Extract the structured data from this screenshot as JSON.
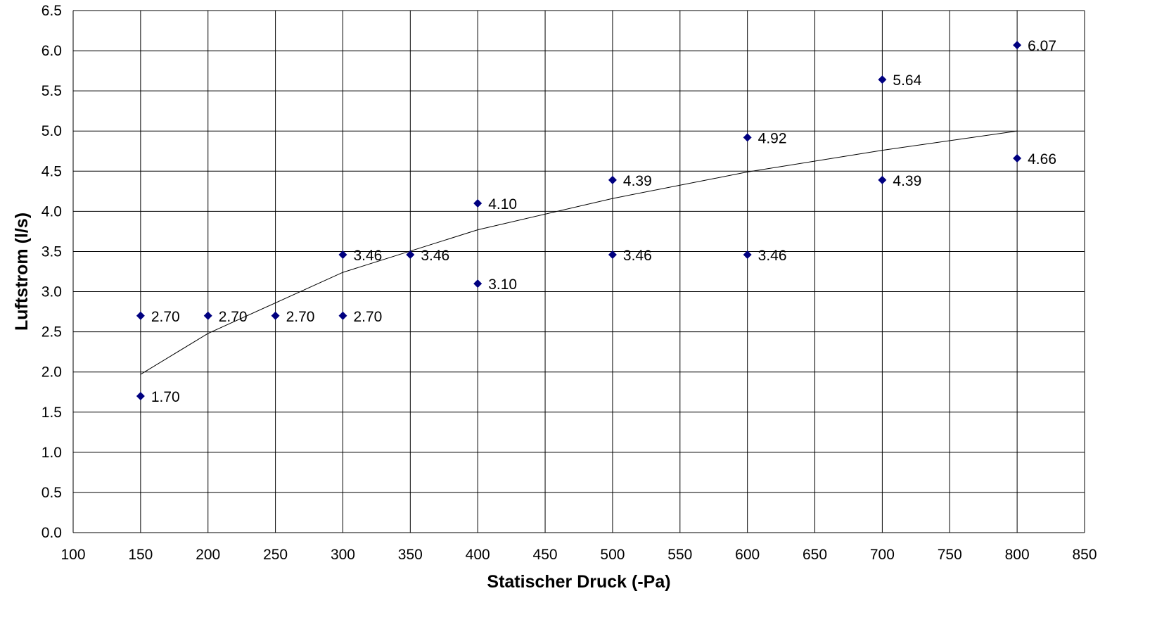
{
  "chart_data": {
    "type": "scatter",
    "title": "",
    "xlabel": "Statischer Druck (-Pa)",
    "ylabel": "Luftstrom (l/s)",
    "xlim": [
      100,
      850
    ],
    "ylim": [
      0,
      6.5
    ],
    "x_ticks": [
      "100",
      "150",
      "200",
      "250",
      "300",
      "350",
      "400",
      "450",
      "500",
      "550",
      "600",
      "650",
      "700",
      "750",
      "800",
      "850"
    ],
    "y_ticks": [
      "0.0",
      "0.5",
      "1.0",
      "1.5",
      "2.0",
      "2.5",
      "3.0",
      "3.5",
      "4.0",
      "4.5",
      "5.0",
      "5.5",
      "6.0",
      "6.5"
    ],
    "grid": true,
    "legend": "none",
    "marker": "diamond",
    "marker_color": "#000080",
    "series": [
      {
        "points": [
          {
            "x": 150,
            "y": 2.7,
            "label": "2.70"
          },
          {
            "x": 150,
            "y": 1.7,
            "label": "1.70"
          },
          {
            "x": 200,
            "y": 2.7,
            "label": "2.70"
          },
          {
            "x": 250,
            "y": 2.7,
            "label": "2.70"
          },
          {
            "x": 300,
            "y": 3.46,
            "label": "3.46"
          },
          {
            "x": 300,
            "y": 2.7,
            "label": "2.70"
          },
          {
            "x": 350,
            "y": 3.46,
            "label": "3.46"
          },
          {
            "x": 400,
            "y": 4.1,
            "label": "4.10"
          },
          {
            "x": 400,
            "y": 3.1,
            "label": "3.10"
          },
          {
            "x": 500,
            "y": 4.39,
            "label": "4.39"
          },
          {
            "x": 500,
            "y": 3.46,
            "label": "3.46"
          },
          {
            "x": 600,
            "y": 4.92,
            "label": "4.92"
          },
          {
            "x": 600,
            "y": 3.46,
            "label": "3.46"
          },
          {
            "x": 700,
            "y": 5.64,
            "label": "5.64"
          },
          {
            "x": 700,
            "y": 4.39,
            "label": "4.39"
          },
          {
            "x": 800,
            "y": 6.07,
            "label": "6.07"
          },
          {
            "x": 800,
            "y": 4.66,
            "label": "4.66"
          }
        ]
      }
    ],
    "trendline": {
      "type": "power",
      "x": [
        150,
        200,
        300,
        400,
        500,
        600,
        700,
        800
      ],
      "y": [
        1.97,
        2.48,
        3.24,
        3.77,
        4.16,
        4.49,
        4.76,
        5.0
      ]
    }
  }
}
